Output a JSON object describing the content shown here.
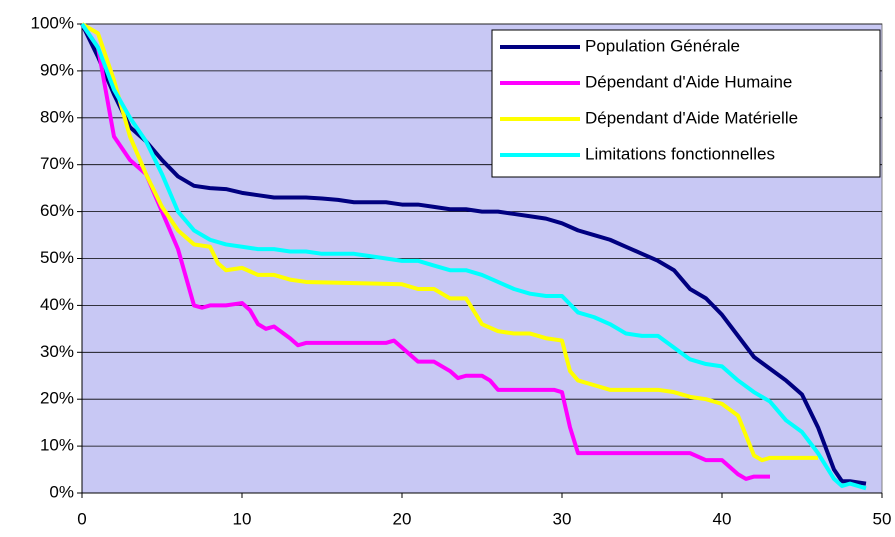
{
  "chart_data": {
    "type": "line",
    "xlim": [
      0,
      50
    ],
    "xticks": [
      0,
      10,
      20,
      30,
      40,
      50
    ],
    "ylim": [
      0,
      100
    ],
    "yticks": [
      {
        "value": 0,
        "label": "0%"
      },
      {
        "value": 10,
        "label": "10%"
      },
      {
        "value": 20,
        "label": "20%"
      },
      {
        "value": 30,
        "label": "30%"
      },
      {
        "value": 40,
        "label": "40%"
      },
      {
        "value": 50,
        "label": "50%"
      },
      {
        "value": 60,
        "label": "60%"
      },
      {
        "value": 70,
        "label": "70%"
      },
      {
        "value": 80,
        "label": "80%"
      },
      {
        "value": 90,
        "label": "90%"
      },
      {
        "value": 100,
        "label": "100%"
      }
    ],
    "grid": true,
    "legend": "upper right",
    "series": [
      {
        "name": "Population Générale",
        "color": "#000080",
        "x": [
          0,
          1,
          2,
          3,
          4,
          5,
          6,
          7,
          8,
          9,
          10,
          11,
          12,
          13,
          14,
          15,
          16,
          17,
          18,
          19,
          20,
          21,
          22,
          23,
          24,
          25,
          26,
          27,
          28,
          29,
          30,
          31,
          32,
          33,
          34,
          35,
          36,
          37,
          38,
          39,
          40,
          41,
          42,
          43,
          44,
          45,
          46,
          47,
          47.5,
          48,
          49
        ],
        "values": [
          100,
          93,
          85,
          78,
          75,
          71,
          67.5,
          65.5,
          65,
          64.8,
          64,
          63.5,
          63,
          63,
          63,
          62.8,
          62.5,
          62,
          62,
          62,
          61.5,
          61.5,
          61,
          60.5,
          60.5,
          60,
          60,
          59.5,
          59,
          58.5,
          57.5,
          56,
          55,
          54,
          52.5,
          51,
          49.5,
          47.5,
          43.5,
          41.5,
          38,
          33.5,
          29,
          26.5,
          24,
          21,
          14,
          5,
          2.5,
          2.5,
          2
        ]
      },
      {
        "name": "Dépendant d'Aide Humaine",
        "color": "#ff00ff",
        "x": [
          0,
          1,
          2,
          3,
          4,
          5,
          6,
          7,
          7.5,
          8,
          9,
          10,
          10.5,
          11,
          11.5,
          12,
          13,
          13.5,
          14,
          19,
          19.5,
          20,
          21,
          22,
          23,
          23.5,
          24,
          25,
          25.5,
          26,
          29.5,
          30,
          30.5,
          31,
          32,
          38,
          39,
          40,
          41,
          41.5,
          42,
          43
        ],
        "values": [
          100,
          95,
          76,
          71,
          68,
          60,
          52,
          40,
          39.5,
          40,
          40,
          40.5,
          39,
          36,
          35,
          35.5,
          33,
          31.5,
          32,
          32,
          32.5,
          31,
          28,
          28,
          26,
          24.5,
          25,
          25,
          24,
          22,
          22,
          21.5,
          14,
          8.5,
          8.5,
          8.5,
          7,
          7,
          4,
          3,
          3.5,
          3.5
        ]
      },
      {
        "name": "Dépendant d'Aide Matérielle",
        "color": "#ffff00",
        "x": [
          0,
          1,
          2,
          3,
          4,
          5,
          6,
          7,
          8,
          8.5,
          9,
          10,
          11,
          12,
          13,
          14,
          20,
          21,
          22,
          23,
          24,
          25,
          26,
          27,
          28,
          29,
          30,
          30.5,
          31,
          32,
          33,
          36,
          37,
          38,
          39,
          40,
          41,
          42,
          42.5,
          43,
          46
        ],
        "values": [
          100,
          98,
          88,
          76,
          68,
          61,
          56,
          53,
          52.5,
          49,
          47.5,
          48,
          46.5,
          46.5,
          45.5,
          45,
          44.5,
          43.5,
          43.5,
          41.5,
          41.5,
          36,
          34.5,
          34,
          34,
          33,
          32.5,
          26,
          24,
          23,
          22,
          22,
          21.5,
          20.5,
          20,
          19,
          16.5,
          8,
          7,
          7.5,
          7.5
        ]
      },
      {
        "name": "Limitations fonctionnelles",
        "color": "#00ffff",
        "x": [
          0,
          1,
          2,
          3,
          4,
          5,
          6,
          7,
          8,
          9,
          10,
          11,
          12,
          13,
          14,
          15,
          16,
          17,
          18,
          19,
          20,
          21,
          22,
          23,
          24,
          25,
          26,
          27,
          28,
          29,
          30,
          31,
          32,
          33,
          34,
          35,
          36,
          37,
          38,
          39,
          40,
          41,
          42,
          43,
          44,
          45,
          46,
          47,
          47.5,
          48,
          49
        ],
        "values": [
          100,
          95,
          86,
          80,
          75,
          68,
          60,
          56,
          54,
          53,
          52.5,
          52,
          52,
          51.5,
          51.5,
          51,
          51,
          51,
          50.5,
          50,
          49.5,
          49.5,
          48.5,
          47.5,
          47.5,
          46.5,
          45,
          43.5,
          42.5,
          42,
          42,
          38.5,
          37.5,
          36,
          34,
          33.5,
          33.5,
          31,
          28.5,
          27.5,
          27,
          24,
          21.5,
          19.5,
          15.5,
          13,
          8.5,
          3,
          1.5,
          2,
          1
        ]
      }
    ]
  }
}
